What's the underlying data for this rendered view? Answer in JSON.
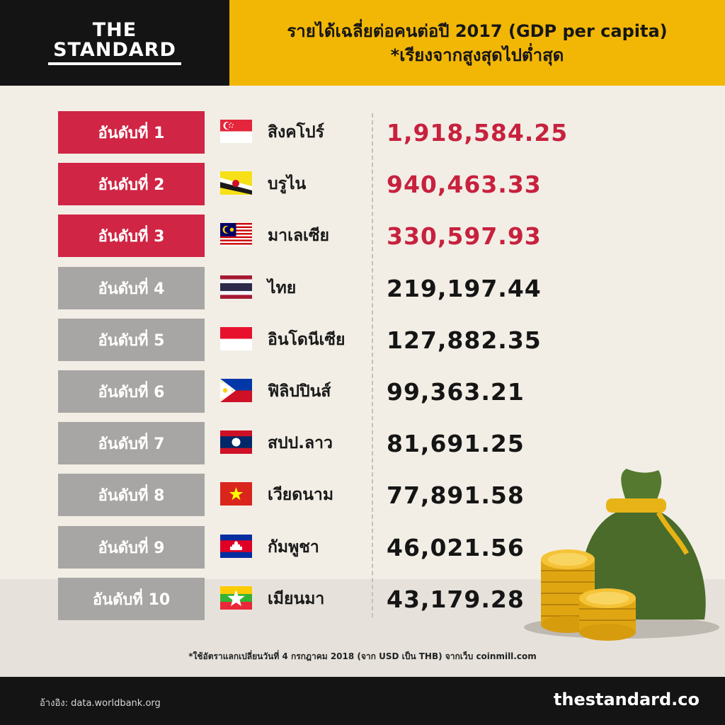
{
  "brand": {
    "line1": "THE",
    "line2": "STANDARD"
  },
  "header": {
    "title": "รายได้เฉลี่ยต่อคนต่อปี 2017 (GDP per capita)",
    "subtitle": "*เรียงจากสูงสุดไปต่ำสุด"
  },
  "colors": {
    "accent_red": "#d02544",
    "accent_yellow": "#f2b705",
    "rank_gray": "#a8a6a4",
    "dark": "#141414"
  },
  "chart_data": {
    "type": "table",
    "title": "รายได้เฉลี่ยต่อคนต่อปี 2017 (GDP per capita)",
    "columns": [
      "rank",
      "country",
      "value"
    ],
    "rows": [
      {
        "rank": "อันดับที่ 1",
        "country": "สิงคโปร์",
        "value": "1,918,584.25",
        "flag": "singapore-flag",
        "highlight": true
      },
      {
        "rank": "อันดับที่ 2",
        "country": "บรูไน",
        "value": "940,463.33",
        "flag": "brunei-flag",
        "highlight": true
      },
      {
        "rank": "อันดับที่ 3",
        "country": "มาเลเซีย",
        "value": "330,597.93",
        "flag": "malaysia-flag",
        "highlight": true
      },
      {
        "rank": "อันดับที่ 4",
        "country": "ไทย",
        "value": "219,197.44",
        "flag": "thailand-flag",
        "highlight": false
      },
      {
        "rank": "อันดับที่ 5",
        "country": "อินโดนีเซีย",
        "value": "127,882.35",
        "flag": "indonesia-flag",
        "highlight": false
      },
      {
        "rank": "อันดับที่ 6",
        "country": "ฟิลิปปินส์",
        "value": "99,363.21",
        "flag": "philippines-flag",
        "highlight": false
      },
      {
        "rank": "อันดับที่ 7",
        "country": "สปป.ลาว",
        "value": "81,691.25",
        "flag": "laos-flag",
        "highlight": false
      },
      {
        "rank": "อันดับที่ 8",
        "country": "เวียดนาม",
        "value": "77,891.58",
        "flag": "vietnam-flag",
        "highlight": false
      },
      {
        "rank": "อันดับที่ 9",
        "country": "กัมพูชา",
        "value": "46,021.56",
        "flag": "cambodia-flag",
        "highlight": false
      },
      {
        "rank": "อันดับที่ 10",
        "country": "เมียนมา",
        "value": "43,179.28",
        "flag": "myanmar-flag",
        "highlight": false
      }
    ]
  },
  "footnote": "*ใช้อัตราแลกเปลี่ยนวันที่ 4 กรกฎาคม 2018 (จาก USD เป็น THB) จากเว็บ coinmill.com",
  "footer": {
    "source": "อ้างอิง: data.worldbank.org",
    "site": "thestandard.co"
  }
}
